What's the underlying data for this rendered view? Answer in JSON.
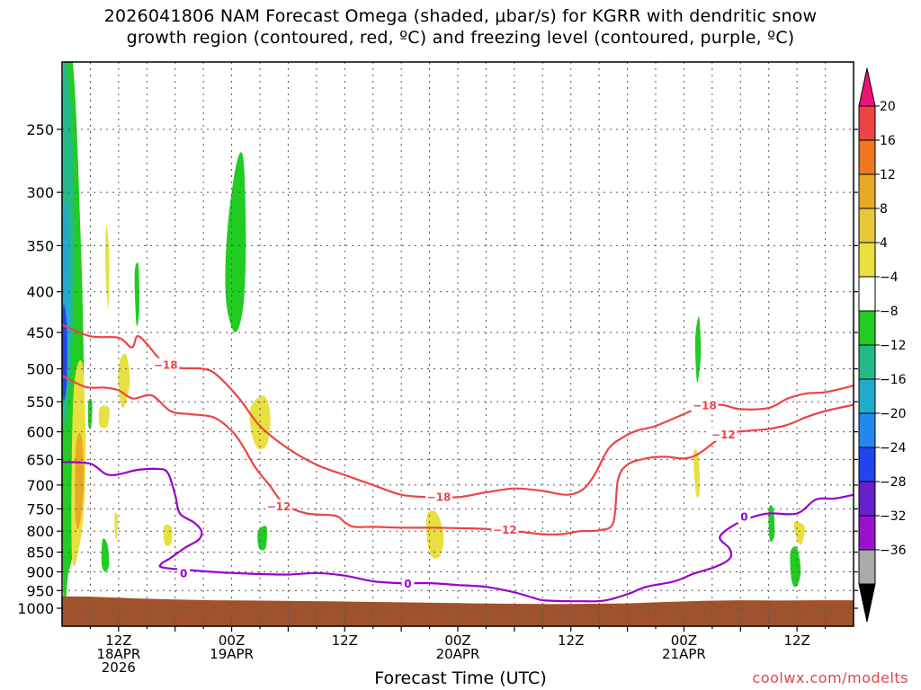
{
  "title": {
    "line1": "2026041806 NAM Forecast Omega (shaded, μbar/s) for KGRR with dendritic snow",
    "line2": "growth region (contoured, red, ºC) and freezing level (contoured, purple, ºC)"
  },
  "credit": "coolwx.com/modelts",
  "colors": {
    "dgz": "#ee4444",
    "freezing": "#9900cc",
    "terrain": "#a0522d",
    "grid": "#555555"
  },
  "chart_data": {
    "type": "heatmap",
    "xlabel": "Forecast Time (UTC)",
    "ylabel": "",
    "x_ticks": [
      {
        "hour": 6,
        "lines": [
          "12Z",
          "18APR",
          "2026"
        ]
      },
      {
        "hour": 18,
        "lines": [
          "00Z",
          "19APR"
        ]
      },
      {
        "hour": 30,
        "lines": [
          "12Z"
        ]
      },
      {
        "hour": 42,
        "lines": [
          "00Z",
          "20APR"
        ]
      },
      {
        "hour": 54,
        "lines": [
          "12Z"
        ]
      },
      {
        "hour": 66,
        "lines": [
          "00Z",
          "21APR"
        ]
      },
      {
        "hour": 78,
        "lines": [
          "12Z"
        ]
      }
    ],
    "xlim": [
      0,
      84
    ],
    "y_ticks": [
      250,
      300,
      350,
      400,
      450,
      500,
      550,
      600,
      650,
      700,
      750,
      800,
      850,
      900,
      950,
      1000
    ],
    "ylim_hPa": [
      200,
      1020
    ],
    "colorbar": {
      "levels": [
        "20",
        "16",
        "12",
        "8",
        "4",
        "−4",
        "−8",
        "−12",
        "−16",
        "−20",
        "−24",
        "−28",
        "−32",
        "−36"
      ],
      "colors": [
        "#ee4444",
        "#ee7722",
        "#e8a828",
        "#e8c838",
        "#e8e040",
        "#ffffff",
        "#22cc22",
        "#22bb88",
        "#22aacc",
        "#2288ee",
        "#2244ee",
        "#6622cc",
        "#9911cc",
        "#aaaaaa"
      ],
      "top_arrow_color": "#ee1177",
      "bottom_arrow_color": "#000000"
    },
    "omega_regions": [
      {
        "color": "#22cc22",
        "pts": [
          [
            0.1,
            210
          ],
          [
            1.2,
            210
          ],
          [
            2.0,
            350
          ],
          [
            2.3,
            500
          ],
          [
            2.2,
            650
          ],
          [
            1.6,
            800
          ],
          [
            0.7,
            900
          ],
          [
            0.1,
            920
          ]
        ]
      },
      {
        "color": "#22bb88",
        "pts": [
          [
            0.1,
            220
          ],
          [
            0.9,
            230
          ],
          [
            1.3,
            330
          ],
          [
            1.2,
            430
          ],
          [
            0.8,
            520
          ],
          [
            0.1,
            560
          ]
        ]
      },
      {
        "color": "#22aacc",
        "pts": [
          [
            0.1,
            320
          ],
          [
            0.7,
            330
          ],
          [
            0.8,
            420
          ],
          [
            0.5,
            490
          ],
          [
            0.1,
            500
          ]
        ]
      },
      {
        "color": "#2244ee",
        "pts": [
          [
            0.1,
            420
          ],
          [
            0.5,
            440
          ],
          [
            0.5,
            520
          ],
          [
            0.1,
            540
          ]
        ]
      },
      {
        "color": "#e8e040",
        "pts": [
          [
            1.2,
            540
          ],
          [
            2.1,
            490
          ],
          [
            2.5,
            600
          ],
          [
            2.3,
            760
          ],
          [
            1.4,
            880
          ],
          [
            1.0,
            820
          ]
        ]
      },
      {
        "color": "#e8a828",
        "pts": [
          [
            1.5,
            620
          ],
          [
            2.1,
            610
          ],
          [
            2.3,
            700
          ],
          [
            1.8,
            790
          ],
          [
            1.4,
            760
          ]
        ]
      },
      {
        "color": "#22cc22",
        "pts": [
          [
            4.3,
            820
          ],
          [
            4.8,
            830
          ],
          [
            5.0,
            880
          ],
          [
            4.6,
            900
          ],
          [
            4.2,
            880
          ]
        ]
      },
      {
        "color": "#e8e040",
        "pts": [
          [
            4.7,
            330
          ],
          [
            5.0,
            360
          ],
          [
            4.9,
            420
          ],
          [
            4.6,
            370
          ]
        ]
      },
      {
        "color": "#22cc22",
        "pts": [
          [
            7.7,
            380
          ],
          [
            8.1,
            370
          ],
          [
            8.2,
            420
          ],
          [
            7.9,
            440
          ]
        ]
      },
      {
        "color": "#e8e040",
        "pts": [
          [
            6.1,
            490
          ],
          [
            6.8,
            480
          ],
          [
            7.2,
            520
          ],
          [
            6.5,
            560
          ],
          [
            6.0,
            530
          ]
        ]
      },
      {
        "color": "#e8e040",
        "pts": [
          [
            4.0,
            560
          ],
          [
            5.0,
            560
          ],
          [
            4.8,
            590
          ],
          [
            4.0,
            590
          ]
        ]
      },
      {
        "color": "#22cc22",
        "pts": [
          [
            2.8,
            550
          ],
          [
            3.2,
            550
          ],
          [
            3.1,
            590
          ],
          [
            2.8,
            590
          ]
        ]
      },
      {
        "color": "#e8e040",
        "pts": [
          [
            10.8,
            790
          ],
          [
            11.6,
            790
          ],
          [
            11.6,
            830
          ],
          [
            10.9,
            830
          ]
        ]
      },
      {
        "color": "#e8e040",
        "pts": [
          [
            5.6,
            760
          ],
          [
            5.9,
            770
          ],
          [
            5.8,
            820
          ],
          [
            5.6,
            800
          ]
        ]
      },
      {
        "color": "#22cc22",
        "pts": [
          [
            17.5,
            340
          ],
          [
            18.4,
            280
          ],
          [
            19.2,
            270
          ],
          [
            19.5,
            330
          ],
          [
            19.3,
            410
          ],
          [
            18.4,
            450
          ],
          [
            17.4,
            410
          ]
        ]
      },
      {
        "color": "#e8e040",
        "pts": [
          [
            20.0,
            560
          ],
          [
            21.4,
            540
          ],
          [
            22.1,
            570
          ],
          [
            21.8,
            620
          ],
          [
            20.8,
            630
          ],
          [
            20.1,
            600
          ]
        ]
      },
      {
        "color": "#22cc22",
        "pts": [
          [
            20.8,
            800
          ],
          [
            21.7,
            790
          ],
          [
            21.6,
            840
          ],
          [
            20.9,
            840
          ]
        ]
      },
      {
        "color": "#e8e040",
        "pts": [
          [
            38.8,
            760
          ],
          [
            39.8,
            760
          ],
          [
            40.5,
            810
          ],
          [
            40.1,
            860
          ],
          [
            39.2,
            860
          ],
          [
            38.7,
            810
          ]
        ]
      },
      {
        "color": "#22cc22",
        "pts": [
          [
            67.2,
            460
          ],
          [
            67.6,
            430
          ],
          [
            67.8,
            480
          ],
          [
            67.4,
            520
          ]
        ]
      },
      {
        "color": "#e8e040",
        "pts": [
          [
            67.0,
            640
          ],
          [
            67.5,
            640
          ],
          [
            67.7,
            710
          ],
          [
            67.3,
            720
          ]
        ]
      },
      {
        "color": "#22cc22",
        "pts": [
          [
            75.0,
            750
          ],
          [
            75.5,
            750
          ],
          [
            75.6,
            810
          ],
          [
            75.1,
            820
          ]
        ]
      },
      {
        "color": "#e8e040",
        "pts": [
          [
            77.7,
            780
          ],
          [
            78.8,
            790
          ],
          [
            78.5,
            830
          ],
          [
            78.0,
            820
          ]
        ]
      },
      {
        "color": "#22cc22",
        "pts": [
          [
            77.3,
            850
          ],
          [
            78.0,
            840
          ],
          [
            78.4,
            900
          ],
          [
            77.9,
            940
          ],
          [
            77.4,
            920
          ]
        ]
      }
    ],
    "contours": [
      {
        "name": "-18 dendritic (upper)",
        "value": "-18",
        "color": "#ee4444",
        "pts": [
          [
            0,
            440
          ],
          [
            3,
            455
          ],
          [
            6,
            457
          ],
          [
            7.4,
            470
          ],
          [
            8,
            455
          ],
          [
            9,
            465
          ],
          [
            10.3,
            485
          ],
          [
            12,
            498
          ],
          [
            15,
            500
          ],
          [
            16.5,
            510
          ],
          [
            18.8,
            545
          ],
          [
            21,
            590
          ],
          [
            24,
            630
          ],
          [
            27,
            660
          ],
          [
            30,
            680
          ],
          [
            33,
            700
          ],
          [
            36,
            720
          ],
          [
            39,
            725
          ],
          [
            42,
            725
          ],
          [
            45,
            715
          ],
          [
            48,
            707
          ],
          [
            51,
            712
          ],
          [
            53.5,
            720
          ],
          [
            55.2,
            710
          ],
          [
            56.5,
            680
          ],
          [
            58,
            630
          ],
          [
            59.5,
            610
          ],
          [
            61,
            598
          ],
          [
            63,
            590
          ],
          [
            66,
            570
          ],
          [
            68,
            558
          ],
          [
            70,
            555
          ],
          [
            72,
            562
          ],
          [
            75,
            560
          ],
          [
            77,
            545
          ],
          [
            79,
            537
          ],
          [
            81,
            535
          ],
          [
            84,
            525
          ]
        ],
        "labels": [
          [
            11.0,
            495
          ],
          [
            40.0,
            725
          ],
          [
            68.2,
            556
          ]
        ]
      },
      {
        "name": "-12 dendritic (lower)",
        "value": "-12",
        "color": "#ee4444",
        "pts": [
          [
            0,
            510
          ],
          [
            2.5,
            527
          ],
          [
            4.5,
            528
          ],
          [
            6,
            532
          ],
          [
            7.5,
            545
          ],
          [
            9.5,
            540
          ],
          [
            11.5,
            565
          ],
          [
            13.5,
            570
          ],
          [
            16,
            575
          ],
          [
            17.8,
            595
          ],
          [
            19,
            620
          ],
          [
            20.5,
            665
          ],
          [
            22,
            700
          ],
          [
            23.6,
            740
          ],
          [
            26,
            760
          ],
          [
            29,
            765
          ],
          [
            30,
            780
          ],
          [
            31,
            790
          ],
          [
            33,
            790
          ],
          [
            36,
            792
          ],
          [
            39,
            792
          ],
          [
            42,
            793
          ],
          [
            45,
            795
          ],
          [
            48,
            800
          ],
          [
            51,
            807
          ],
          [
            53,
            807
          ],
          [
            55,
            800
          ],
          [
            57,
            798
          ],
          [
            58.5,
            780
          ],
          [
            59,
            690
          ],
          [
            60,
            660
          ],
          [
            62,
            648
          ],
          [
            64,
            645
          ],
          [
            66,
            648
          ],
          [
            67.5,
            640
          ],
          [
            69.5,
            615
          ],
          [
            71,
            602
          ],
          [
            73,
            598
          ],
          [
            75,
            595
          ],
          [
            77,
            588
          ],
          [
            79,
            575
          ],
          [
            81,
            565
          ],
          [
            84,
            555
          ]
        ],
        "labels": [
          [
            23.0,
            745
          ],
          [
            47.0,
            797
          ],
          [
            70.2,
            605
          ]
        ]
      },
      {
        "name": "0 freezing level",
        "value": "0",
        "color": "#9900cc",
        "pts": [
          [
            0,
            655
          ],
          [
            3,
            658
          ],
          [
            5,
            680
          ],
          [
            8,
            670
          ],
          [
            10,
            668
          ],
          [
            11.2,
            675
          ],
          [
            12,
            720
          ],
          [
            12.5,
            760
          ],
          [
            14,
            780
          ],
          [
            14.8,
            800
          ],
          [
            14.5,
            820
          ],
          [
            13,
            840
          ],
          [
            11.5,
            865
          ],
          [
            10.5,
            880
          ],
          [
            11,
            890
          ],
          [
            16,
            900
          ],
          [
            20,
            905
          ],
          [
            24,
            907
          ],
          [
            27,
            903
          ],
          [
            30,
            910
          ],
          [
            33,
            925
          ],
          [
            36,
            930
          ],
          [
            39,
            930
          ],
          [
            42,
            935
          ],
          [
            45,
            940
          ],
          [
            48,
            955
          ],
          [
            50,
            970
          ],
          [
            51.3,
            978
          ],
          [
            55,
            980
          ],
          [
            57.6,
            978
          ],
          [
            60,
            960
          ],
          [
            62,
            940
          ],
          [
            65,
            925
          ],
          [
            67,
            905
          ],
          [
            69,
            890
          ],
          [
            70.4,
            875
          ],
          [
            71,
            860
          ],
          [
            70.8,
            840
          ],
          [
            69.8,
            815
          ],
          [
            71,
            790
          ],
          [
            73,
            770
          ],
          [
            75,
            760
          ],
          [
            78,
            760
          ],
          [
            80,
            730
          ],
          [
            82,
            728
          ],
          [
            84,
            720
          ]
        ],
        "labels": [
          [
            12.9,
            905
          ],
          [
            36.7,
            932
          ],
          [
            72.4,
            768
          ]
        ]
      }
    ],
    "terrain": {
      "color": "#a0522d",
      "pts": [
        [
          0,
          966
        ],
        [
          3,
          967
        ],
        [
          6,
          970
        ],
        [
          8,
          972
        ],
        [
          12,
          975
        ],
        [
          16,
          977
        ],
        [
          20,
          978
        ],
        [
          28,
          980
        ],
        [
          36,
          983
        ],
        [
          44,
          986
        ],
        [
          52,
          988
        ],
        [
          60,
          986
        ],
        [
          64,
          982
        ],
        [
          68,
          979
        ],
        [
          72,
          977
        ],
        [
          76,
          978
        ],
        [
          80,
          977
        ],
        [
          84,
          977
        ]
      ]
    }
  }
}
